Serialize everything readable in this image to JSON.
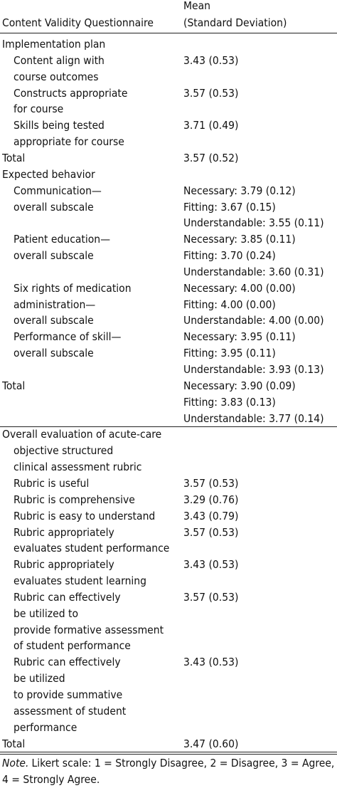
{
  "header": {
    "col1": "Content Validity Questionnaire",
    "col2": [
      "Mean",
      "(Standard Deviation)"
    ]
  },
  "sections": [
    {
      "title": [
        "Implementation plan"
      ],
      "items": [
        {
          "label": [
            "Content align with",
            "course outcomes"
          ],
          "values": [
            "3.43 (0.53)"
          ]
        },
        {
          "label": [
            "Constructs appropriate",
            "for course"
          ],
          "values": [
            "3.57 (0.53)"
          ]
        },
        {
          "label": [
            "Skills being tested",
            "appropriate for course"
          ],
          "values": [
            "3.71 (0.49)"
          ]
        }
      ],
      "total": {
        "label": "Total",
        "values": [
          "3.57 (0.52)"
        ]
      }
    },
    {
      "title": [
        "Expected behavior"
      ],
      "items": [
        {
          "label": [
            "Communication—",
            "overall subscale"
          ],
          "values": [
            "Necessary: 3.79 (0.12)",
            "Fitting: 3.67 (0.15)",
            "Understandable: 3.55 (0.11)"
          ]
        },
        {
          "label": [
            "Patient education—",
            "overall subscale"
          ],
          "values": [
            "Necessary: 3.85 (0.11)",
            "Fitting: 3.70 (0.24)",
            "Understandable: 3.60 (0.31)"
          ]
        },
        {
          "label": [
            "Six rights of medication",
            "administration—",
            "overall subscale"
          ],
          "values": [
            "Necessary: 4.00 (0.00)",
            "Fitting: 4.00 (0.00)",
            "Understandable: 4.00 (0.00)"
          ]
        },
        {
          "label": [
            "Performance of skill—",
            "overall subscale"
          ],
          "values": [
            "Necessary: 3.95 (0.11)",
            "Fitting: 3.95 (0.11)",
            "Understandable: 3.93 (0.13)"
          ]
        }
      ],
      "total": {
        "label": "Total",
        "values": [
          "Necessary: 3.90 (0.09)",
          "Fitting: 3.83 (0.13)",
          "Understandable: 3.77 (0.14)"
        ]
      }
    },
    {
      "title": [
        "Overall evaluation of acute-care",
        "objective structured",
        "clinical assessment rubric"
      ],
      "items": [
        {
          "label": [
            "Rubric is useful"
          ],
          "values": [
            "3.57 (0.53)"
          ]
        },
        {
          "label": [
            "Rubric is comprehensive"
          ],
          "values": [
            "3.29 (0.76)"
          ]
        },
        {
          "label": [
            "Rubric is easy to understand"
          ],
          "values": [
            "3.43 (0.79)"
          ]
        },
        {
          "label": [
            "Rubric appropriately",
            "evaluates student performance"
          ],
          "values": [
            "3.57 (0.53)"
          ]
        },
        {
          "label": [
            "Rubric appropriately",
            "evaluates student learning"
          ],
          "values": [
            "3.43 (0.53)"
          ]
        },
        {
          "label": [
            "Rubric can effectively",
            "be utilized to",
            "provide formative assessment",
            "of student performance"
          ],
          "values": [
            "3.57 (0.53)"
          ]
        },
        {
          "label": [
            "Rubric can effectively",
            "be utilized",
            "to provide summative",
            "assessment of student",
            "performance"
          ],
          "values": [
            "3.43 (0.53)"
          ]
        }
      ],
      "total": {
        "label": "Total",
        "values": [
          "3.47 (0.60)"
        ]
      }
    }
  ],
  "note": {
    "label": "Note.",
    "text": "Likert scale: 1 = Strongly Disagree, 2 = Disagree, 3 = Agree, 4 = Strongly Agree."
  }
}
